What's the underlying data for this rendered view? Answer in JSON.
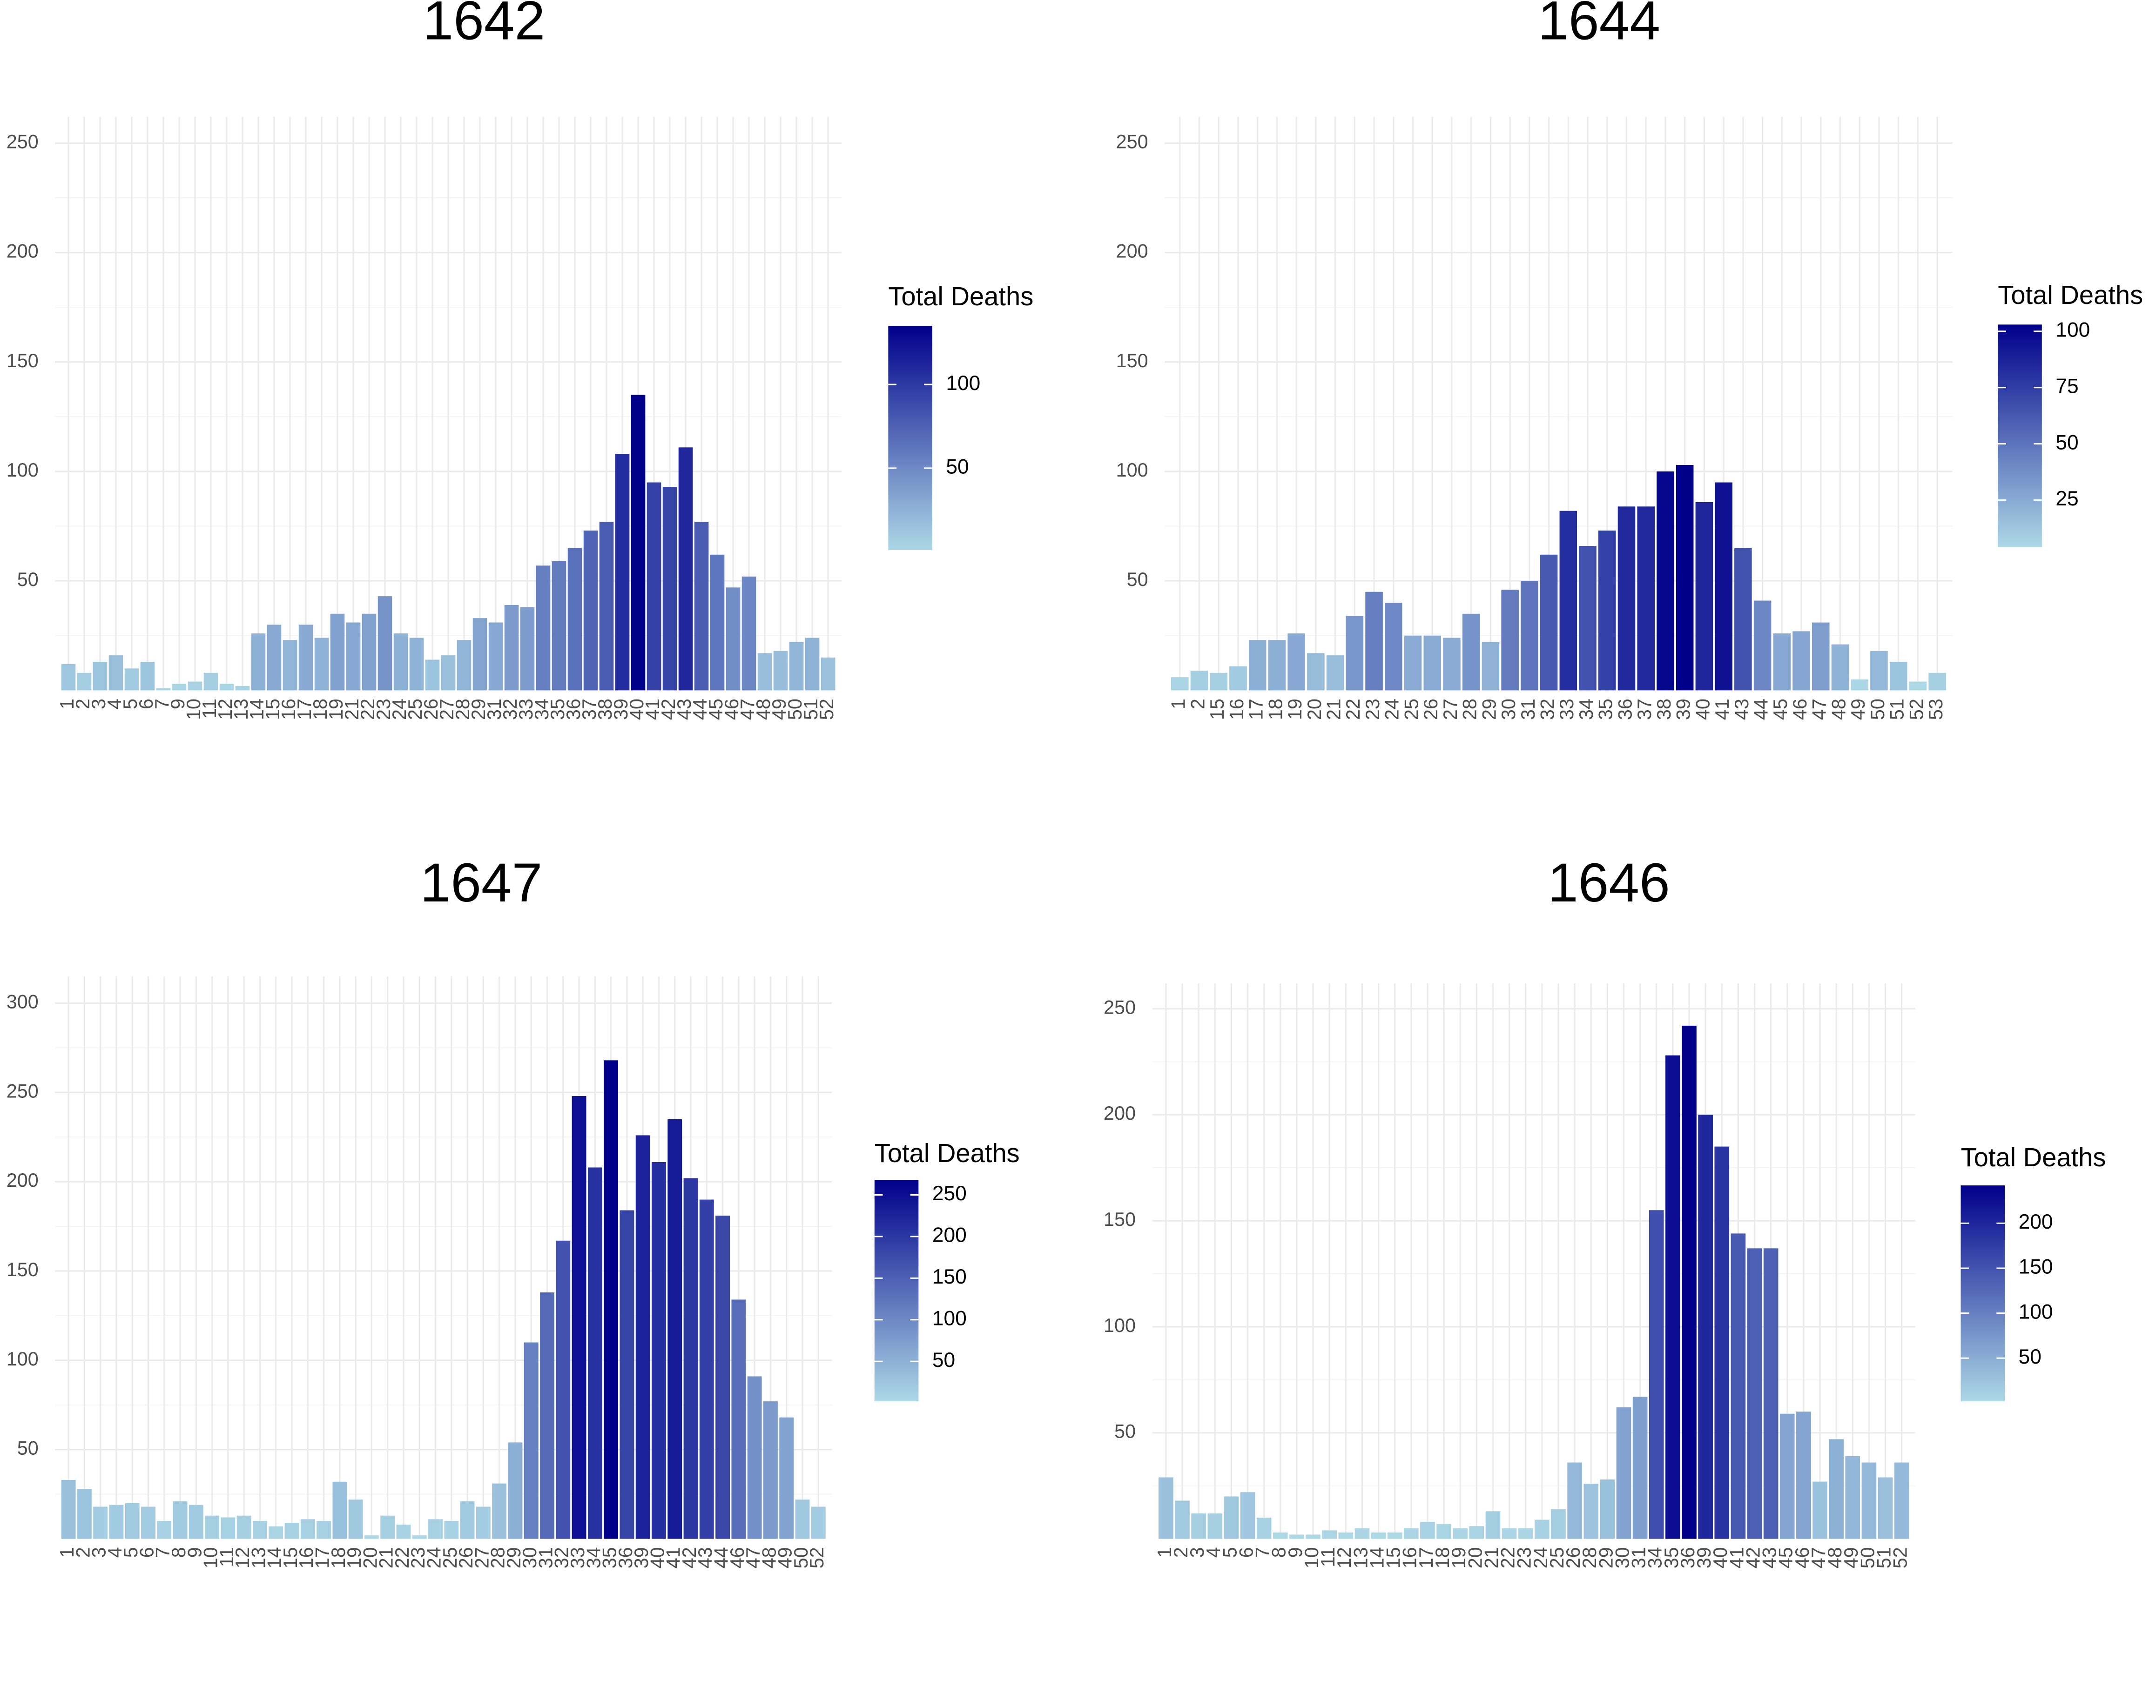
{
  "chart_data": [
    {
      "type": "bar",
      "title": "1642",
      "categories": [
        "1",
        "2",
        "3",
        "4",
        "5",
        "6",
        "7",
        "9",
        "10",
        "11",
        "12",
        "13",
        "14",
        "15",
        "16",
        "17",
        "18",
        "19",
        "21",
        "22",
        "23",
        "24",
        "25",
        "26",
        "27",
        "28",
        "29",
        "31",
        "32",
        "33",
        "34",
        "35",
        "36",
        "37",
        "38",
        "39",
        "40",
        "41",
        "42",
        "43",
        "44",
        "45",
        "46",
        "47",
        "48",
        "49",
        "50",
        "51",
        "52"
      ],
      "values": [
        12,
        8,
        13,
        16,
        10,
        13,
        1,
        3,
        4,
        8,
        3,
        2,
        26,
        30,
        23,
        30,
        24,
        35,
        31,
        35,
        43,
        26,
        24,
        14,
        16,
        23,
        33,
        31,
        39,
        38,
        57,
        59,
        65,
        73,
        77,
        108,
        135,
        95,
        93,
        111,
        77,
        62,
        47,
        52,
        17,
        18,
        22,
        24,
        15
      ],
      "ylim": [
        0,
        262
      ],
      "yticks": [
        50,
        100,
        150,
        200,
        250
      ],
      "grid": true,
      "legend_title": "Total Deaths",
      "colorbar_ticks": [
        50,
        100
      ],
      "low_color": "#add8e6",
      "high_color": "#00008b"
    },
    {
      "type": "bar",
      "title": "1644",
      "categories": [
        "1",
        "2",
        "15",
        "16",
        "17",
        "18",
        "19",
        "20",
        "21",
        "22",
        "23",
        "24",
        "25",
        "26",
        "27",
        "28",
        "29",
        "30",
        "31",
        "32",
        "33",
        "34",
        "35",
        "36",
        "37",
        "38",
        "39",
        "40",
        "41",
        "43",
        "44",
        "45",
        "46",
        "47",
        "48",
        "49",
        "50",
        "51",
        "52",
        "53"
      ],
      "values": [
        6,
        9,
        8,
        11,
        23,
        23,
        26,
        17,
        16,
        34,
        45,
        40,
        25,
        25,
        24,
        35,
        22,
        46,
        50,
        62,
        82,
        66,
        73,
        84,
        84,
        100,
        103,
        86,
        95,
        65,
        41,
        26,
        27,
        31,
        21,
        5,
        18,
        13,
        4,
        8
      ],
      "ylim": [
        0,
        262
      ],
      "yticks": [
        50,
        100,
        150,
        200,
        250
      ],
      "grid": true,
      "legend_title": "Total Deaths",
      "colorbar_ticks": [
        25,
        50,
        75,
        100
      ],
      "low_color": "#add8e6",
      "high_color": "#00008b"
    },
    {
      "type": "bar",
      "title": "1647",
      "categories": [
        "1",
        "2",
        "3",
        "4",
        "5",
        "6",
        "7",
        "8",
        "9",
        "10",
        "11",
        "12",
        "13",
        "14",
        "15",
        "16",
        "17",
        "18",
        "19",
        "20",
        "21",
        "22",
        "23",
        "24",
        "25",
        "26",
        "27",
        "28",
        "29",
        "30",
        "31",
        "32",
        "33",
        "34",
        "35",
        "36",
        "39",
        "40",
        "41",
        "42",
        "43",
        "44",
        "46",
        "47",
        "48",
        "49",
        "50",
        "52"
      ],
      "values": [
        33,
        28,
        18,
        19,
        20,
        18,
        10,
        21,
        19,
        13,
        12,
        13,
        10,
        7,
        9,
        11,
        10,
        32,
        22,
        2,
        13,
        8,
        2,
        11,
        10,
        21,
        18,
        31,
        54,
        110,
        138,
        167,
        248,
        208,
        268,
        184,
        226,
        211,
        235,
        202,
        190,
        181,
        134,
        91,
        77,
        68,
        22,
        18
      ],
      "ylim": [
        0,
        315
      ],
      "yticks": [
        50,
        100,
        150,
        200,
        250,
        300
      ],
      "grid": true,
      "legend_title": "Total Deaths",
      "colorbar_ticks": [
        50,
        100,
        150,
        200,
        250
      ],
      "low_color": "#add8e6",
      "high_color": "#00008b"
    },
    {
      "type": "bar",
      "title": "1646",
      "categories": [
        "1",
        "2",
        "3",
        "4",
        "5",
        "6",
        "7",
        "8",
        "9",
        "10",
        "11",
        "12",
        "13",
        "14",
        "15",
        "16",
        "17",
        "18",
        "19",
        "20",
        "21",
        "22",
        "23",
        "24",
        "25",
        "26",
        "28",
        "29",
        "30",
        "31",
        "34",
        "35",
        "36",
        "39",
        "40",
        "41",
        "42",
        "43",
        "45",
        "46",
        "47",
        "48",
        "49",
        "50",
        "51",
        "52"
      ],
      "values": [
        29,
        18,
        12,
        12,
        20,
        22,
        10,
        3,
        2,
        2,
        4,
        3,
        5,
        3,
        3,
        5,
        8,
        7,
        5,
        6,
        13,
        5,
        5,
        9,
        14,
        36,
        26,
        28,
        62,
        67,
        155,
        228,
        242,
        200,
        185,
        144,
        137,
        137,
        59,
        60,
        27,
        47,
        39,
        36,
        29,
        36
      ],
      "ylim": [
        0,
        262
      ],
      "yticks": [
        50,
        100,
        150,
        200,
        250
      ],
      "grid": true,
      "legend_title": "Total Deaths",
      "colorbar_ticks": [
        50,
        100,
        150,
        200
      ],
      "low_color": "#add8e6",
      "high_color": "#00008b"
    }
  ]
}
